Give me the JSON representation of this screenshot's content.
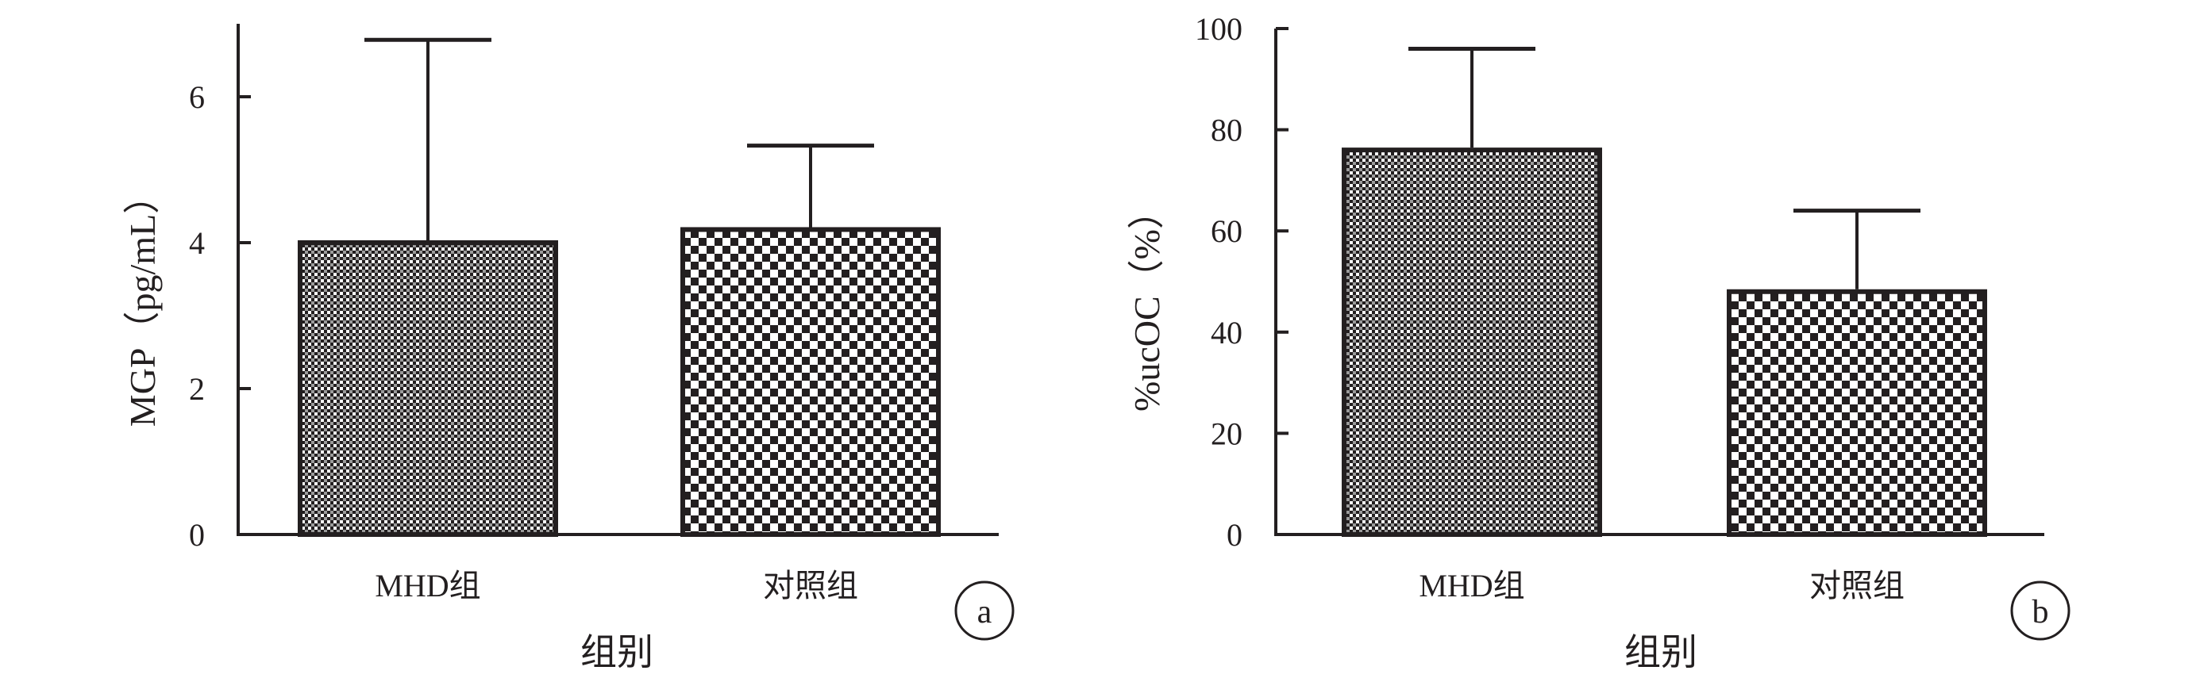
{
  "chart_data": [
    {
      "panel_label": "a",
      "type": "bar",
      "categories": [
        "MHD组",
        "对照组"
      ],
      "values": [
        4.0,
        4.18
      ],
      "error_upper": [
        6.78,
        5.33
      ],
      "xlabel": "组别",
      "ylabel": "MGP（pg/mL）",
      "ylim": [
        0,
        7
      ],
      "yticks": [
        "0",
        "2",
        "4",
        "6"
      ],
      "grid": false,
      "legend": "none"
    },
    {
      "panel_label": "b",
      "type": "bar",
      "categories": [
        "MHD组",
        "对照组"
      ],
      "values": [
        76,
        48
      ],
      "error_upper": [
        96,
        64
      ],
      "xlabel": "组别",
      "ylabel": "%ucOC（%）",
      "ylim": [
        0,
        100
      ],
      "yticks": [
        "0",
        "20",
        "40",
        "60",
        "80",
        "100"
      ],
      "grid": false,
      "legend": "none"
    }
  ],
  "colors": {
    "ink": "#231f20",
    "background": "#ffffff"
  }
}
